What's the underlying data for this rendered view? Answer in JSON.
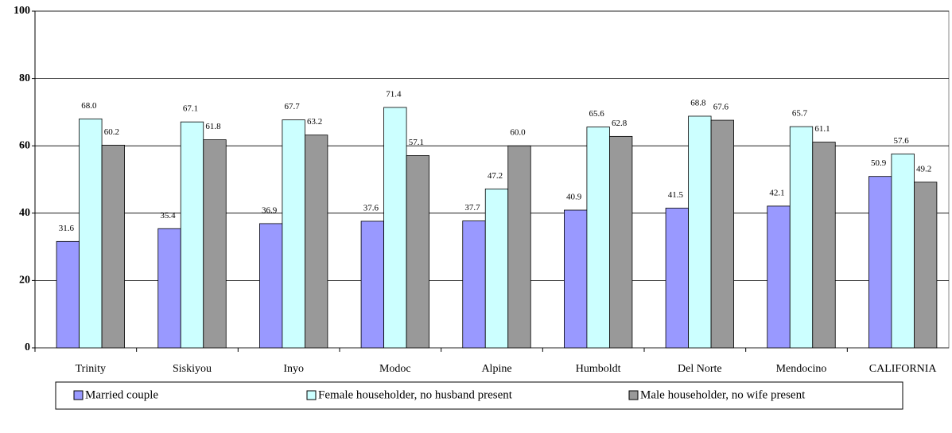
{
  "chart_data": {
    "type": "bar",
    "categories": [
      "Trinity",
      "Siskiyou",
      "Inyo",
      "Modoc",
      "Alpine",
      "Humboldt",
      "Del Norte",
      "Mendocino",
      "CALIFORNIA"
    ],
    "series": [
      {
        "name": "Married couple",
        "color": "#9999ff",
        "values": [
          31.6,
          35.4,
          36.9,
          37.6,
          37.7,
          40.9,
          41.5,
          42.1,
          50.9
        ],
        "value_labels": [
          "31.6",
          "35.4",
          "36.9",
          "37.6",
          "37.7",
          "40.9",
          "41.5",
          "42.1",
          "50.9"
        ]
      },
      {
        "name": "Female householder, no husband present",
        "color": "#ccffff",
        "values": [
          68.0,
          67.1,
          67.7,
          71.4,
          47.2,
          65.6,
          68.8,
          65.7,
          57.6
        ],
        "value_labels": [
          "68.0",
          "67.1",
          "67.7",
          "71.4",
          "47.2",
          "65.6",
          "68.8",
          "65.7",
          "57.6"
        ]
      },
      {
        "name": "Male householder, no wife present",
        "color": "#999999",
        "values": [
          60.2,
          61.8,
          63.2,
          57.1,
          60.0,
          62.8,
          67.6,
          61.1,
          49.2
        ],
        "value_labels": [
          "60.2",
          "61.8",
          "63.2",
          "57.1",
          "60.0",
          "62.8",
          "67.6",
          "61.1",
          "49.2"
        ]
      }
    ],
    "ylim": [
      0,
      100
    ],
    "yticks": [
      0,
      20,
      40,
      60,
      80,
      100
    ],
    "grid": true
  }
}
